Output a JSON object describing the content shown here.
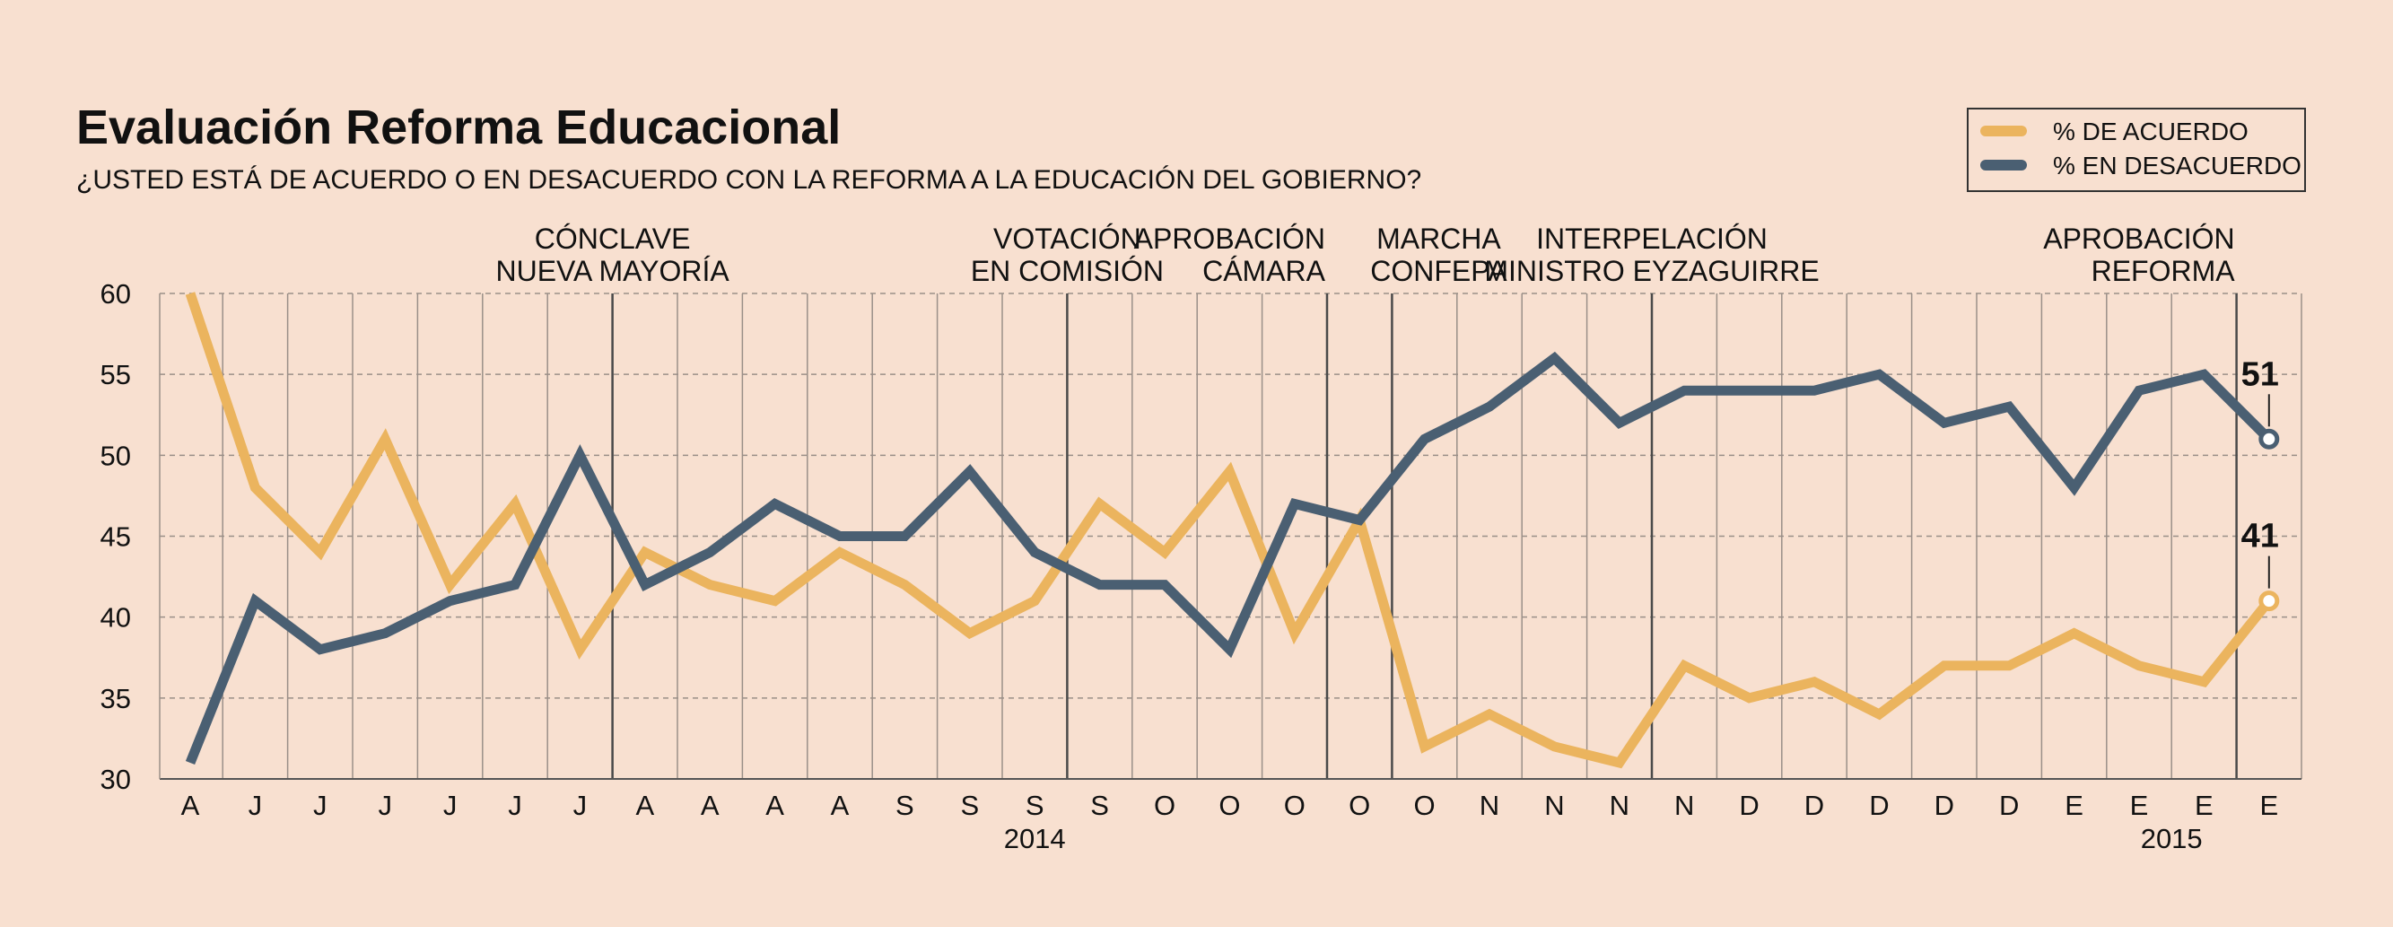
{
  "chart_data": {
    "type": "line",
    "title": "Evaluación Reforma Educacional",
    "subtitle": "¿USTED ESTÁ DE ACUERDO O EN DESACUERDO CON LA REFORMA A LA EDUCACIÓN DEL GOBIERNO?",
    "ylim": [
      30,
      60
    ],
    "yticks": [
      30,
      35,
      40,
      45,
      50,
      55,
      60
    ],
    "grid": true,
    "legend_position": "top-right",
    "categories": [
      "A",
      "J",
      "J",
      "J",
      "J",
      "J",
      "J",
      "A",
      "A",
      "A",
      "A",
      "S",
      "S",
      "S",
      "S",
      "O",
      "O",
      "O",
      "O",
      "O",
      "N",
      "N",
      "N",
      "N",
      "D",
      "D",
      "D",
      "D",
      "D",
      "E",
      "E",
      "E",
      "E"
    ],
    "years": [
      {
        "label": "2014",
        "at_index": 13
      },
      {
        "label": "2015",
        "at_index": 30.5
      }
    ],
    "series": [
      {
        "name": "% DE ACUERDO",
        "color": "#ebb45e",
        "values": [
          60,
          48,
          44,
          51,
          42,
          47,
          38,
          44,
          42,
          41,
          44,
          42,
          39,
          41,
          47,
          44,
          49,
          39,
          46,
          32,
          34,
          32,
          31,
          37,
          35,
          36,
          34,
          37,
          37,
          39,
          37,
          36,
          41
        ],
        "end_label": "41"
      },
      {
        "name": "% EN DESACUERDO",
        "color": "#4a5f72",
        "values": [
          31,
          41,
          38,
          39,
          41,
          42,
          50,
          42,
          44,
          47,
          45,
          45,
          49,
          44,
          42,
          42,
          38,
          47,
          46,
          51,
          53,
          56,
          52,
          54,
          54,
          54,
          55,
          52,
          53,
          48,
          54,
          55,
          51
        ],
        "end_label": "51"
      }
    ],
    "events": [
      {
        "lines": [
          "CÓNCLAVE",
          "NUEVA MAYORÍA"
        ],
        "index": 6.5,
        "align": "center"
      },
      {
        "lines": [
          "VOTACIÓN",
          "EN COMISIÓN"
        ],
        "index": 13.5,
        "align": "center"
      },
      {
        "lines": [
          "APROBACIÓN",
          "CÁMARA"
        ],
        "index": 17.5,
        "align": "right"
      },
      {
        "lines": [
          "MARCHA",
          "CONFEPA"
        ],
        "index": 18.5,
        "align": "center-right"
      },
      {
        "lines": [
          "INTERPELACIÓN",
          "MINISTRO EYZAGUIRRE"
        ],
        "index": 22.5,
        "align": "center"
      },
      {
        "lines": [
          "APROBACIÓN",
          "REFORMA"
        ],
        "index": 31.5,
        "align": "right"
      }
    ]
  }
}
